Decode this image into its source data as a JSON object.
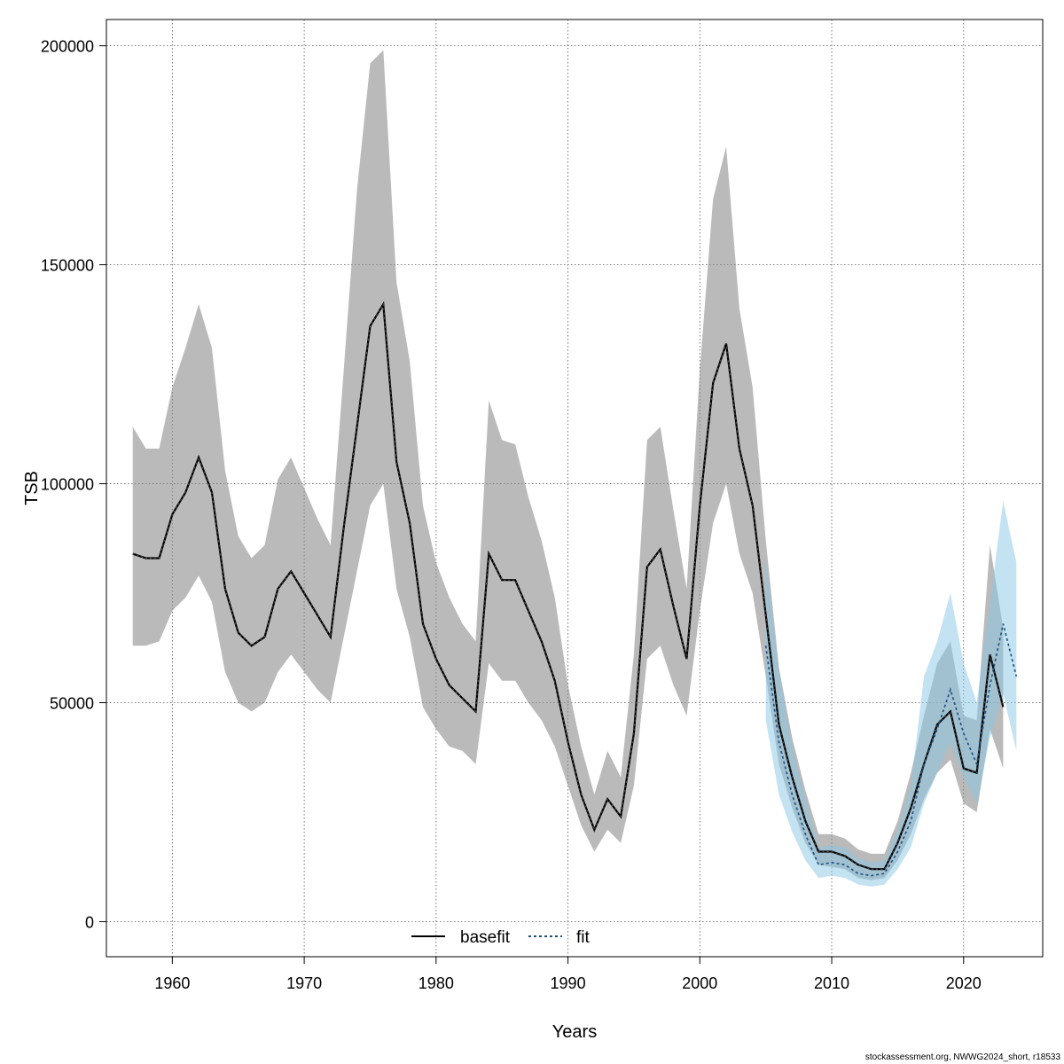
{
  "chart_data": {
    "type": "line",
    "title": "",
    "xlabel": "Years",
    "ylabel": "TSB",
    "xlim": [
      1955,
      2026
    ],
    "ylim": [
      -8000,
      206000
    ],
    "x_ticks": [
      1960,
      1970,
      1980,
      1990,
      2000,
      2010,
      2020
    ],
    "y_ticks": [
      0,
      50000,
      100000,
      150000,
      200000
    ],
    "x_tick_labels": [
      "1960",
      "1970",
      "1980",
      "1990",
      "2000",
      "2010",
      "2020"
    ],
    "y_tick_labels": [
      "0",
      "50000",
      "100000",
      "150000",
      "200000"
    ],
    "grid": true,
    "legend_position": "bottom-center",
    "colors": {
      "basefit_line": "#000000",
      "basefit_band": "#8c8c8c",
      "fit_line": "#1a4f80",
      "fit_band": "#87c5e6"
    },
    "series": [
      {
        "name": "basefit",
        "x": [
          1957,
          1958,
          1959,
          1960,
          1961,
          1962,
          1963,
          1964,
          1965,
          1966,
          1967,
          1968,
          1969,
          1970,
          1971,
          1972,
          1973,
          1974,
          1975,
          1976,
          1977,
          1978,
          1979,
          1980,
          1981,
          1982,
          1983,
          1984,
          1985,
          1986,
          1987,
          1988,
          1989,
          1990,
          1991,
          1992,
          1993,
          1994,
          1995,
          1996,
          1997,
          1998,
          1999,
          2000,
          2001,
          2002,
          2003,
          2004,
          2005,
          2006,
          2007,
          2008,
          2009,
          2010,
          2011,
          2012,
          2013,
          2014,
          2015,
          2016,
          2017,
          2018,
          2019,
          2020,
          2021,
          2022,
          2023
        ],
        "y": [
          84000,
          83000,
          83000,
          93000,
          98000,
          106000,
          98000,
          76000,
          66000,
          63000,
          65000,
          76000,
          80000,
          75000,
          70000,
          65000,
          90000,
          113000,
          136000,
          141000,
          105000,
          91000,
          68000,
          60000,
          54000,
          51000,
          48000,
          84000,
          78000,
          78000,
          71000,
          64000,
          55000,
          41000,
          29000,
          21000,
          28000,
          24000,
          43000,
          81000,
          85000,
          72000,
          60000,
          95000,
          123000,
          132000,
          108000,
          95000,
          70000,
          45000,
          33000,
          23000,
          16000,
          16000,
          15000,
          13000,
          12000,
          12000,
          18000,
          26000,
          36000,
          45000,
          48000,
          35000,
          34000,
          61000,
          49000
        ],
        "lower": [
          63000,
          63000,
          64000,
          71000,
          74000,
          79000,
          73000,
          57000,
          50000,
          48000,
          50000,
          57000,
          61000,
          57000,
          53000,
          50000,
          65000,
          80000,
          95000,
          100000,
          76000,
          65000,
          49000,
          44000,
          40000,
          39000,
          36000,
          59000,
          55000,
          55000,
          50000,
          46000,
          40000,
          31000,
          22000,
          16000,
          21000,
          18000,
          31000,
          60000,
          63000,
          54000,
          47000,
          71000,
          91000,
          100000,
          84000,
          75000,
          56000,
          36000,
          26000,
          18000,
          13000,
          12500,
          12000,
          10000,
          9500,
          10000,
          14000,
          20000,
          28000,
          34000,
          37000,
          27000,
          25000,
          44000,
          35000
        ],
        "upper": [
          113000,
          108000,
          108000,
          122000,
          131000,
          141000,
          131000,
          103000,
          88000,
          83000,
          86000,
          101000,
          106000,
          99000,
          92000,
          86000,
          126000,
          167000,
          196000,
          199000,
          146000,
          128000,
          95000,
          82000,
          74000,
          68000,
          64000,
          119000,
          110000,
          109000,
          97000,
          87000,
          74000,
          54000,
          40000,
          29000,
          39000,
          33000,
          61000,
          110000,
          113000,
          94000,
          76000,
          126000,
          165000,
          177000,
          140000,
          122000,
          87000,
          58000,
          42000,
          30000,
          20000,
          20000,
          19000,
          16500,
          15500,
          15500,
          23000,
          34000,
          47000,
          59000,
          64000,
          47000,
          46000,
          86000,
          67000
        ]
      },
      {
        "name": "fit",
        "x": [
          2005,
          2006,
          2007,
          2008,
          2009,
          2010,
          2011,
          2012,
          2013,
          2014,
          2015,
          2016,
          2017,
          2018,
          2019,
          2020,
          2021,
          2022,
          2023,
          2024
        ],
        "y": [
          63000,
          41000,
          29000,
          20000,
          13000,
          13500,
          13000,
          11000,
          10500,
          11000,
          16000,
          23000,
          36000,
          44000,
          53000,
          43000,
          36000,
          54000,
          68000,
          56000
        ],
        "lower": [
          46000,
          29000,
          20500,
          14000,
          10000,
          10500,
          10000,
          8500,
          8000,
          8500,
          12000,
          17000,
          27000,
          34000,
          41000,
          33000,
          27000,
          42000,
          52000,
          39000
        ],
        "upper": [
          83000,
          57000,
          40000,
          28000,
          17000,
          17500,
          17000,
          14500,
          13500,
          14000,
          21000,
          31000,
          56000,
          64000,
          75000,
          59000,
          50000,
          73000,
          96000,
          82000
        ]
      }
    ]
  },
  "legend": {
    "items": [
      "basefit",
      "fit"
    ]
  },
  "footnote": "stockassessment.org, NWWG2024_short, r18533"
}
